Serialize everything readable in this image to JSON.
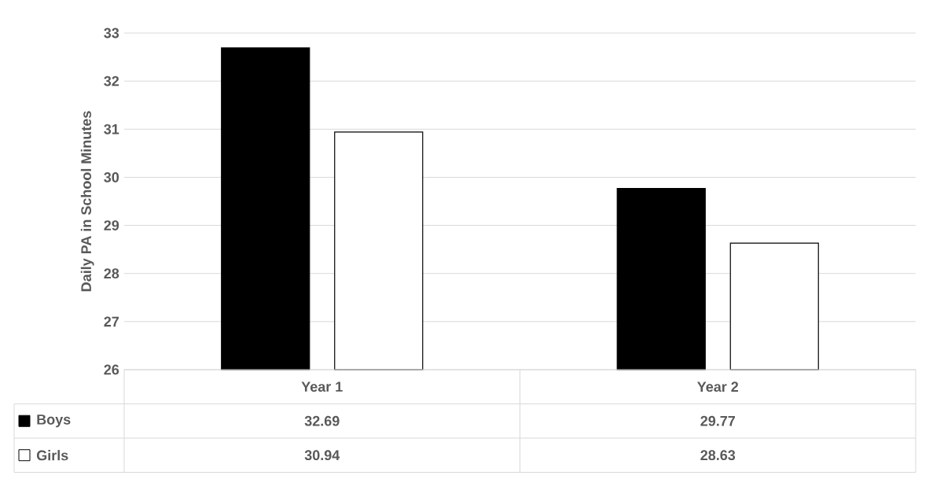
{
  "chart_data": {
    "type": "bar",
    "ylabel": "Daily PA in School Minutes",
    "categories": [
      "Year 1",
      "Year 2"
    ],
    "series": [
      {
        "name": "Boys",
        "color": "#000000",
        "values": [
          32.69,
          29.77
        ]
      },
      {
        "name": "Girls",
        "color": "#ffffff",
        "values": [
          30.94,
          28.63
        ]
      }
    ],
    "ylim": [
      26,
      33
    ],
    "yticks": [
      26,
      27,
      28,
      29,
      30,
      31,
      32,
      33
    ],
    "grid": "y",
    "legend": "bottom",
    "data_labels": true
  }
}
